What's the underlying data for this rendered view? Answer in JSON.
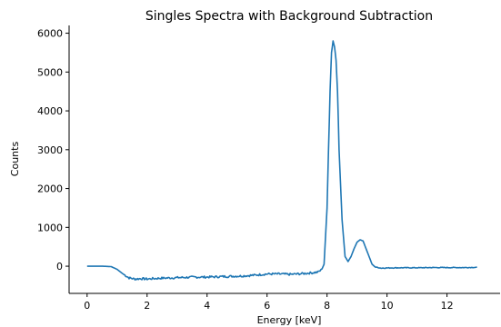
{
  "chart_data": {
    "type": "line",
    "title": "Singles Spectra with Background Subtraction",
    "xlabel": "Energy [keV]",
    "ylabel": "Counts",
    "xlim": [
      -0.6,
      13.8
    ],
    "ylim": [
      -700,
      6200
    ],
    "xticks": [
      0,
      2,
      4,
      6,
      8,
      10,
      12
    ],
    "yticks": [
      0,
      1000,
      2000,
      3000,
      4000,
      5000,
      6000
    ],
    "grid": false,
    "series": [
      {
        "color": "#1f77b4",
        "points": [
          [
            0.0,
            0
          ],
          [
            0.5,
            0
          ],
          [
            0.8,
            -10
          ],
          [
            1.0,
            -80
          ],
          [
            1.2,
            -200
          ],
          [
            1.4,
            -300
          ],
          [
            1.6,
            -330
          ],
          [
            1.8,
            -320
          ],
          [
            2.0,
            -330
          ],
          [
            2.4,
            -310
          ],
          [
            2.8,
            -300
          ],
          [
            3.2,
            -290
          ],
          [
            3.6,
            -280
          ],
          [
            4.0,
            -280
          ],
          [
            4.4,
            -270
          ],
          [
            4.8,
            -260
          ],
          [
            5.2,
            -250
          ],
          [
            5.6,
            -230
          ],
          [
            6.0,
            -200
          ],
          [
            6.4,
            -200
          ],
          [
            6.8,
            -210
          ],
          [
            7.2,
            -190
          ],
          [
            7.5,
            -170
          ],
          [
            7.7,
            -150
          ],
          [
            7.8,
            -100
          ],
          [
            7.9,
            50
          ],
          [
            8.0,
            1500
          ],
          [
            8.05,
            3000
          ],
          [
            8.1,
            4500
          ],
          [
            8.15,
            5500
          ],
          [
            8.2,
            5800
          ],
          [
            8.25,
            5650
          ],
          [
            8.3,
            5300
          ],
          [
            8.35,
            4500
          ],
          [
            8.4,
            3000
          ],
          [
            8.5,
            1200
          ],
          [
            8.6,
            250
          ],
          [
            8.7,
            120
          ],
          [
            8.8,
            250
          ],
          [
            8.9,
            450
          ],
          [
            9.0,
            620
          ],
          [
            9.1,
            680
          ],
          [
            9.2,
            650
          ],
          [
            9.3,
            450
          ],
          [
            9.4,
            250
          ],
          [
            9.5,
            50
          ],
          [
            9.6,
            -20
          ],
          [
            9.8,
            -50
          ],
          [
            10.0,
            -45
          ],
          [
            10.5,
            -40
          ],
          [
            11.0,
            -40
          ],
          [
            11.5,
            -35
          ],
          [
            12.0,
            -35
          ],
          [
            12.5,
            -35
          ],
          [
            13.0,
            -30
          ]
        ]
      }
    ]
  }
}
